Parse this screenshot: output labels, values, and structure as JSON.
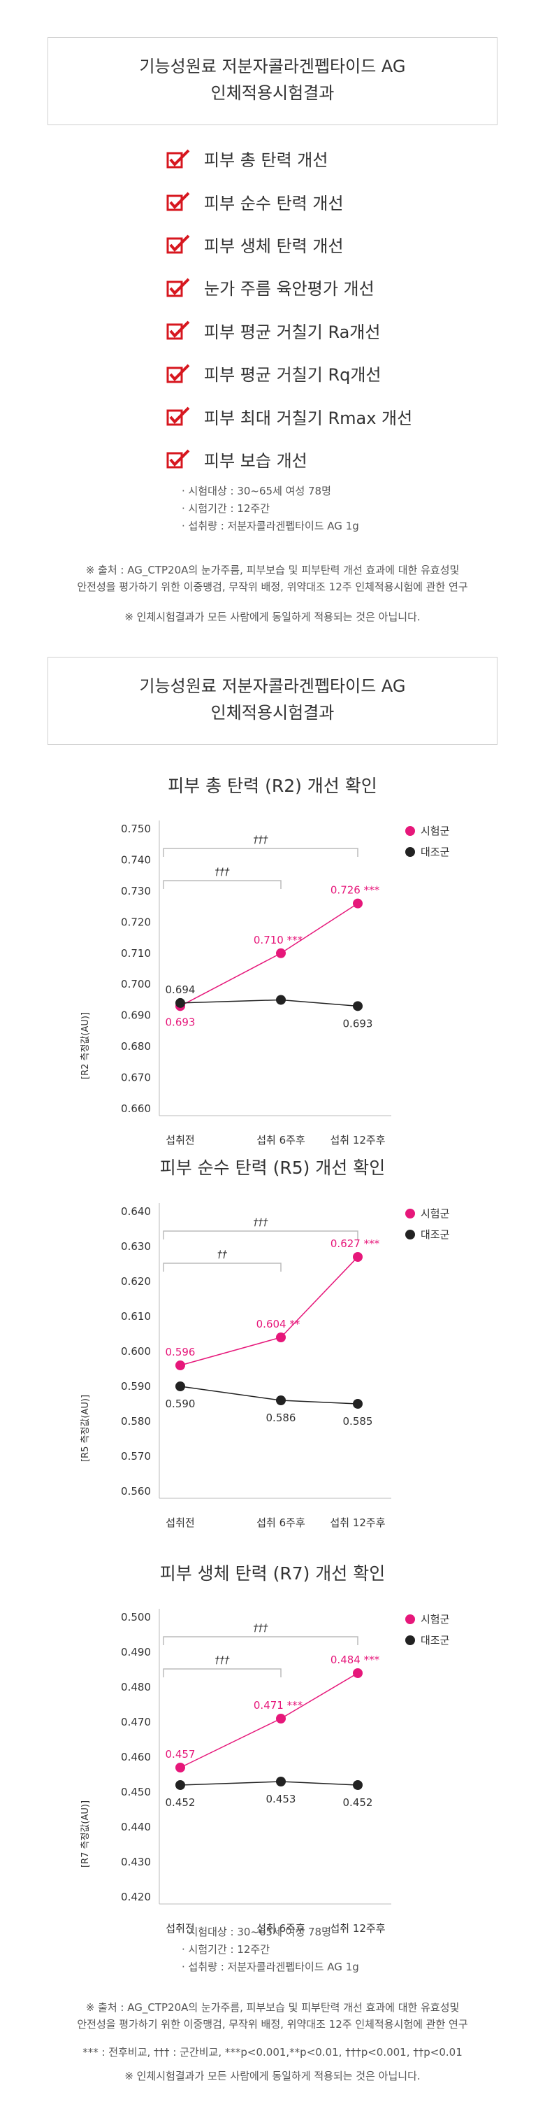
{
  "colors": {
    "test": "#e6177a",
    "control": "#222222",
    "grid": "#bbbbbb",
    "text": "#333333"
  },
  "top_title": [
    "기능성원료 저분자콜라겐펩타이드 AG",
    "인체적용시험결과"
  ],
  "checklist": [
    "피부 총 탄력 개선",
    "피부 순수 탄력 개선",
    "피부 생체 탄력 개선",
    "눈가 주름 육안평가 개선",
    "피부 평균 거칠기 Ra개선",
    "피부 평균 거칠기 Rq개선",
    "피부 최대 거칠기 Rmax 개선",
    "피부 보습 개선"
  ],
  "study_info": [
    "시험대상 : 30~65세 여성 78명",
    "시험기간 : 12주간",
    "섭취량 : 저분자콜라겐펩타이드 AG 1g"
  ],
  "source_note": [
    "※ 출처 : AG_CTP20A의 눈가주름, 피부보습 및 피부탄력 개선 효과에 대한 유효성및",
    "안전성을 평가하기 위한 이중맹검, 무작위 배정, 위약대조 12주 인체적용시험에 관한 연구"
  ],
  "disclaimer": "※ 인체시험결과가 모든 사람에게 동일하게 적용되는 것은 아닙니다.",
  "second_title": [
    "기능성원료 저분자콜라겐펩타이드 AG",
    "인체적용시험결과"
  ],
  "stats_note": "*** : 전후비교, ††† : 군간비교, ***p<0.001,**p<0.01,  †††p<0.001,  ††p<0.01",
  "chart_data": [
    {
      "type": "line",
      "title": "피부 총 탄력 (R2) 개선 확인",
      "ylabel": "[R2 측정값(AU)]",
      "categories": [
        "섭취전",
        "섭취 6주후",
        "섭취 12주후"
      ],
      "ylim": [
        0.66,
        0.75
      ],
      "yticks": [
        "0.750",
        "0.740",
        "0.730",
        "0.720",
        "0.710",
        "0.700",
        "0.690",
        "0.680",
        "0.670",
        "0.660"
      ],
      "series": [
        {
          "name": "시험군",
          "values": [
            0.693,
            0.71,
            0.726
          ],
          "labels": [
            "0.693",
            "0.710 ***",
            "0.726 ***"
          ]
        },
        {
          "name": "대조군",
          "values": [
            0.694,
            0.695,
            0.693
          ],
          "labels": [
            "0.694",
            "",
            "0.693"
          ]
        }
      ],
      "brackets": [
        {
          "from": 0,
          "to": 1,
          "label": "†††"
        },
        {
          "from": 0,
          "to": 2,
          "label": "†††"
        }
      ]
    },
    {
      "type": "line",
      "title": "피부 순수 탄력 (R5) 개선 확인",
      "ylabel": "[R5 측정값(AU)]",
      "categories": [
        "섭취전",
        "섭취 6주후",
        "섭취 12주후"
      ],
      "ylim": [
        0.56,
        0.64
      ],
      "yticks": [
        "0.640",
        "0.630",
        "0.620",
        "0.610",
        "0.600",
        "0.590",
        "0.580",
        "0.570",
        "0.560"
      ],
      "series": [
        {
          "name": "시험군",
          "values": [
            0.596,
            0.604,
            0.627
          ],
          "labels": [
            "0.596",
            "0.604 **",
            "0.627 ***"
          ]
        },
        {
          "name": "대조군",
          "values": [
            0.59,
            0.586,
            0.585
          ],
          "labels": [
            "0.590",
            "0.586",
            "0.585"
          ]
        }
      ],
      "brackets": [
        {
          "from": 0,
          "to": 1,
          "label": "††"
        },
        {
          "from": 0,
          "to": 2,
          "label": "†††"
        }
      ]
    },
    {
      "type": "line",
      "title": "피부 생체 탄력 (R7) 개선 확인",
      "ylabel": "[R7 측정값(AU)]",
      "categories": [
        "섭취전",
        "섭취 6주후",
        "섭취 12주후"
      ],
      "ylim": [
        0.42,
        0.5
      ],
      "yticks": [
        "0.500",
        "0.490",
        "0.480",
        "0.470",
        "0.460",
        "0.450",
        "0.440",
        "0.430",
        "0.420"
      ],
      "series": [
        {
          "name": "시험군",
          "values": [
            0.457,
            0.471,
            0.484
          ],
          "labels": [
            "0.457",
            "0.471 ***",
            "0.484 ***"
          ]
        },
        {
          "name": "대조군",
          "values": [
            0.452,
            0.453,
            0.452
          ],
          "labels": [
            "0.452",
            "0.453",
            "0.452"
          ]
        }
      ],
      "brackets": [
        {
          "from": 0,
          "to": 1,
          "label": "†††"
        },
        {
          "from": 0,
          "to": 2,
          "label": "†††"
        }
      ]
    }
  ]
}
